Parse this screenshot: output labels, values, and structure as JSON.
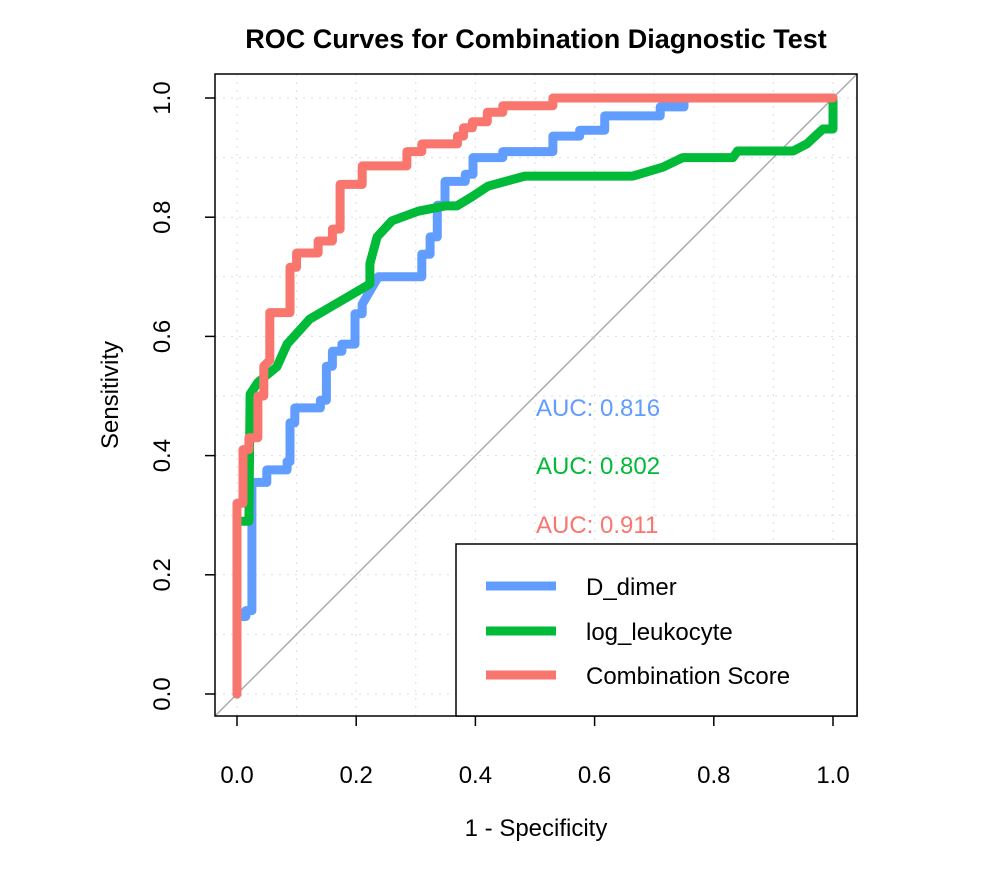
{
  "chart_data": {
    "type": "line",
    "title": "ROC Curves for Combination Diagnostic Test",
    "xlabel": "1 - Specificity",
    "ylabel": "Sensitivity",
    "xlim": [
      0,
      1
    ],
    "ylim": [
      0,
      1
    ],
    "xticks": [
      "0.0",
      "0.2",
      "0.4",
      "0.6",
      "0.8",
      "1.0"
    ],
    "yticks": [
      "0.0",
      "0.2",
      "0.4",
      "0.6",
      "0.8",
      "1.0"
    ],
    "grid": true,
    "reference_line": "diagonal",
    "legend_position": "bottom-right",
    "series": [
      {
        "name": "D_dimer",
        "color": "#619CFF",
        "auc_label": "AUC: 0.816",
        "points": [
          [
            0,
            0
          ],
          [
            0,
            0.13
          ],
          [
            0.015,
            0.13
          ],
          [
            0.015,
            0.14
          ],
          [
            0.025,
            0.14
          ],
          [
            0.025,
            0.355
          ],
          [
            0.05,
            0.355
          ],
          [
            0.05,
            0.376
          ],
          [
            0.084,
            0.376
          ],
          [
            0.084,
            0.39
          ],
          [
            0.089,
            0.39
          ],
          [
            0.089,
            0.455
          ],
          [
            0.097,
            0.455
          ],
          [
            0.097,
            0.48
          ],
          [
            0.14,
            0.48
          ],
          [
            0.14,
            0.493
          ],
          [
            0.15,
            0.493
          ],
          [
            0.15,
            0.55
          ],
          [
            0.16,
            0.55
          ],
          [
            0.16,
            0.575
          ],
          [
            0.176,
            0.575
          ],
          [
            0.176,
            0.587
          ],
          [
            0.198,
            0.587
          ],
          [
            0.198,
            0.638
          ],
          [
            0.21,
            0.638
          ],
          [
            0.21,
            0.654
          ],
          [
            0.237,
            0.7
          ],
          [
            0.31,
            0.7
          ],
          [
            0.31,
            0.738
          ],
          [
            0.324,
            0.738
          ],
          [
            0.324,
            0.767
          ],
          [
            0.336,
            0.767
          ],
          [
            0.336,
            0.82
          ],
          [
            0.349,
            0.82
          ],
          [
            0.349,
            0.86
          ],
          [
            0.383,
            0.86
          ],
          [
            0.383,
            0.872
          ],
          [
            0.396,
            0.872
          ],
          [
            0.396,
            0.9
          ],
          [
            0.446,
            0.9
          ],
          [
            0.446,
            0.91
          ],
          [
            0.53,
            0.91
          ],
          [
            0.53,
            0.936
          ],
          [
            0.575,
            0.936
          ],
          [
            0.575,
            0.946
          ],
          [
            0.617,
            0.946
          ],
          [
            0.617,
            0.97
          ],
          [
            0.71,
            0.97
          ],
          [
            0.71,
            0.985
          ],
          [
            0.75,
            0.985
          ],
          [
            0.75,
            1
          ],
          [
            1,
            1
          ]
        ]
      },
      {
        "name": "log_leukocyte",
        "color": "#00BA38",
        "auc_label": "AUC: 0.802",
        "points": [
          [
            0,
            0
          ],
          [
            0,
            0.29
          ],
          [
            0.02,
            0.29
          ],
          [
            0.022,
            0.503
          ],
          [
            0.035,
            0.523
          ],
          [
            0.067,
            0.549
          ],
          [
            0.084,
            0.587
          ],
          [
            0.122,
            0.629
          ],
          [
            0.223,
            0.688
          ],
          [
            0.223,
            0.722
          ],
          [
            0.235,
            0.767
          ],
          [
            0.26,
            0.794
          ],
          [
            0.304,
            0.81
          ],
          [
            0.349,
            0.819
          ],
          [
            0.369,
            0.819
          ],
          [
            0.394,
            0.834
          ],
          [
            0.421,
            0.852
          ],
          [
            0.483,
            0.869
          ],
          [
            0.664,
            0.869
          ],
          [
            0.715,
            0.884
          ],
          [
            0.748,
            0.9
          ],
          [
            0.832,
            0.9
          ],
          [
            0.84,
            0.911
          ],
          [
            0.933,
            0.911
          ],
          [
            0.956,
            0.923
          ],
          [
            0.983,
            0.948
          ],
          [
            1,
            0.948
          ],
          [
            1,
            1
          ]
        ]
      },
      {
        "name": "Combination Score",
        "color": "#F8766D",
        "auc_label": "AUC: 0.911",
        "points": [
          [
            0,
            0
          ],
          [
            0,
            0.32
          ],
          [
            0.01,
            0.32
          ],
          [
            0.01,
            0.41
          ],
          [
            0.02,
            0.41
          ],
          [
            0.02,
            0.43
          ],
          [
            0.035,
            0.43
          ],
          [
            0.035,
            0.5
          ],
          [
            0.045,
            0.5
          ],
          [
            0.045,
            0.55
          ],
          [
            0.055,
            0.56
          ],
          [
            0.055,
            0.64
          ],
          [
            0.089,
            0.64
          ],
          [
            0.089,
            0.716
          ],
          [
            0.1,
            0.716
          ],
          [
            0.1,
            0.74
          ],
          [
            0.136,
            0.74
          ],
          [
            0.136,
            0.76
          ],
          [
            0.16,
            0.76
          ],
          [
            0.16,
            0.78
          ],
          [
            0.173,
            0.78
          ],
          [
            0.173,
            0.855
          ],
          [
            0.21,
            0.855
          ],
          [
            0.21,
            0.886
          ],
          [
            0.285,
            0.886
          ],
          [
            0.285,
            0.91
          ],
          [
            0.31,
            0.91
          ],
          [
            0.31,
            0.923
          ],
          [
            0.37,
            0.923
          ],
          [
            0.37,
            0.936
          ],
          [
            0.38,
            0.936
          ],
          [
            0.38,
            0.95
          ],
          [
            0.395,
            0.95
          ],
          [
            0.395,
            0.96
          ],
          [
            0.42,
            0.96
          ],
          [
            0.42,
            0.976
          ],
          [
            0.446,
            0.976
          ],
          [
            0.446,
            0.987
          ],
          [
            0.53,
            0.987
          ],
          [
            0.53,
            1
          ],
          [
            1,
            1
          ]
        ]
      }
    ]
  }
}
